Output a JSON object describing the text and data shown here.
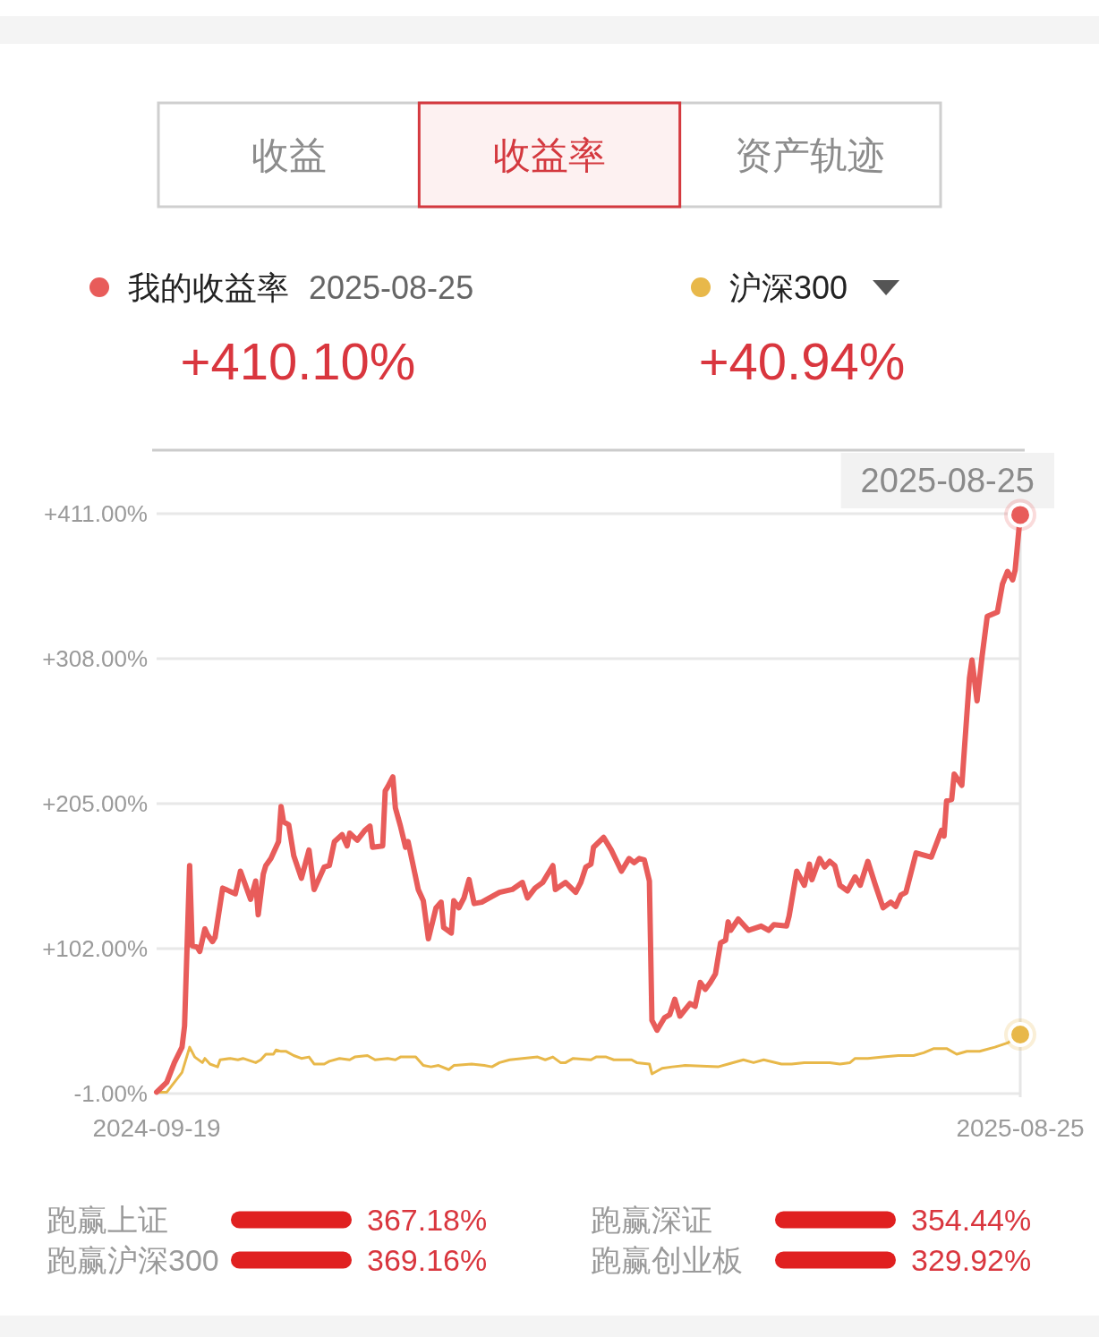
{
  "chart_data": [
    {
      "type": "line",
      "legend": "top",
      "grid": "y",
      "annotations": [
        "收益",
        "收益率",
        "资产轨迹",
        "2025-08-25",
        "+410.10%",
        "+40.94%"
      ],
      "xlim": [
        "2024-09-19",
        "2025-08-25"
      ],
      "xticks": [
        "2024-09-19",
        "2025-08-25"
      ],
      "ylim": [
        -1,
        411
      ],
      "yticks": [
        {
          "value": -1,
          "label": "-1.00%"
        },
        {
          "value": 102,
          "label": "+102.00%"
        },
        {
          "value": 205,
          "label": "+205.00%"
        },
        {
          "value": 308,
          "label": "+308.00%"
        },
        {
          "value": 411,
          "label": "+411.00%"
        }
      ],
      "ref_lines": [
        {
          "axis": "x",
          "value": "2025-08-25",
          "label": "2025-08-25",
          "color": "#e6e6e6"
        }
      ],
      "series": [
        {
          "name": "我的收益率",
          "color": "#e85c5a",
          "x": [
            "2024-09-19",
            "2024-09-23",
            "2024-09-26",
            "2024-09-29",
            "2024-09-30",
            "2024-10-02",
            "2024-10-03",
            "2024-10-05",
            "2024-10-06",
            "2024-10-08",
            "2024-10-09",
            "2024-10-11",
            "2024-10-12",
            "2024-10-15",
            "2024-10-20",
            "2024-10-22",
            "2024-10-26",
            "2024-10-28",
            "2024-10-29",
            "2024-10-31",
            "2024-11-01",
            "2024-11-03",
            "2024-11-06",
            "2024-11-07",
            "2024-11-08",
            "2024-11-10",
            "2024-11-12",
            "2024-11-15",
            "2024-11-18",
            "2024-11-20",
            "2024-11-24",
            "2024-11-26",
            "2024-11-28",
            "2024-12-01",
            "2024-12-03",
            "2024-12-04",
            "2024-12-07",
            "2024-12-10",
            "2024-12-12",
            "2024-12-13",
            "2024-12-17",
            "2024-12-18",
            "2024-12-19",
            "2024-12-21",
            "2024-12-22",
            "2024-12-24",
            "2024-12-26",
            "2024-12-27",
            "2024-12-31",
            "2025-01-02",
            "2025-01-04",
            "2025-01-07",
            "2025-01-09",
            "2025-01-10",
            "2025-01-13",
            "2025-01-14",
            "2025-01-16",
            "2025-01-18",
            "2025-01-20",
            "2025-01-22",
            "2025-01-25",
            "2025-01-28",
            "2025-02-01",
            "2025-02-06",
            "2025-02-10",
            "2025-02-12",
            "2025-02-15",
            "2025-02-18",
            "2025-02-22",
            "2025-02-23",
            "2025-02-27",
            "2025-03-03",
            "2025-03-05",
            "2025-03-07",
            "2025-03-09",
            "2025-03-10",
            "2025-03-14",
            "2025-03-17",
            "2025-03-21",
            "2025-03-24",
            "2025-03-26",
            "2025-03-28",
            "2025-03-30",
            "2025-04-01",
            "2025-04-02",
            "2025-04-04",
            "2025-04-07",
            "2025-04-09",
            "2025-04-11",
            "2025-04-13",
            "2025-04-17",
            "2025-04-19",
            "2025-04-21",
            "2025-04-23",
            "2025-04-25",
            "2025-04-27",
            "2025-04-29",
            "2025-05-01",
            "2025-05-02",
            "2025-05-03",
            "2025-05-06",
            "2025-05-10",
            "2025-05-15",
            "2025-05-18",
            "2025-05-20",
            "2025-05-25",
            "2025-05-26",
            "2025-05-29",
            "2025-06-01",
            "2025-06-03",
            "2025-06-04",
            "2025-06-07",
            "2025-06-09",
            "2025-06-11",
            "2025-06-13",
            "2025-06-15",
            "2025-06-18",
            "2025-06-21",
            "2025-06-23",
            "2025-06-26",
            "2025-06-29",
            "2025-07-02",
            "2025-07-05",
            "2025-07-07",
            "2025-07-09",
            "2025-07-11",
            "2025-07-12",
            "2025-07-15",
            "2025-07-21",
            "2025-07-25",
            "2025-07-26",
            "2025-07-27",
            "2025-07-29",
            "2025-07-30",
            "2025-08-02",
            "2025-08-05",
            "2025-08-06",
            "2025-08-08",
            "2025-08-10",
            "2025-08-12",
            "2025-08-16",
            "2025-08-18",
            "2025-08-20",
            "2025-08-22",
            "2025-08-23",
            "2025-08-25"
          ],
          "values": [
            0,
            7,
            21,
            32,
            47,
            161,
            104,
            103,
            100,
            116,
            112,
            107,
            110,
            145,
            141,
            157,
            137,
            150,
            126,
            155,
            161,
            166,
            178,
            203,
            192,
            190,
            168,
            152,
            172,
            144,
            160,
            161,
            178,
            183,
            175,
            184,
            179,
            186,
            189,
            174,
            175,
            214,
            217,
            224,
            202,
            189,
            174,
            178,
            144,
            136,
            109,
            131,
            135,
            117,
            113,
            136,
            131,
            138,
            151,
            134,
            135,
            138,
            142,
            144,
            149,
            138,
            145,
            149,
            161,
            144,
            149,
            142,
            149,
            160,
            162,
            174,
            181,
            172,
            157,
            166,
            163,
            166,
            165,
            150,
            51,
            44,
            53,
            55,
            66,
            54,
            63,
            61,
            78,
            73,
            78,
            84,
            106,
            108,
            121,
            115,
            123,
            115,
            118,
            115,
            119,
            118,
            125,
            157,
            147,
            162,
            151,
            166,
            160,
            164,
            161,
            147,
            143,
            153,
            147,
            164,
            147,
            131,
            135,
            132,
            140,
            142,
            149,
            170,
            167,
            186,
            182,
            207,
            208,
            226,
            218,
            294,
            307,
            278,
            310,
            338,
            341,
            361,
            370,
            364,
            371,
            410.1
          ]
        },
        {
          "name": "沪深300",
          "color": "#e8b84a",
          "x": [
            "2024-09-19",
            "2024-09-23",
            "2024-09-26",
            "2024-09-29",
            "2024-10-02",
            "2024-10-04",
            "2024-10-07",
            "2024-10-08",
            "2024-10-10",
            "2024-10-13",
            "2024-10-14",
            "2024-10-18",
            "2024-10-21",
            "2024-10-23",
            "2024-10-28",
            "2024-10-30",
            "2024-11-01",
            "2024-11-04",
            "2024-11-05",
            "2024-11-07",
            "2024-11-09",
            "2024-11-12",
            "2024-11-15",
            "2024-11-18",
            "2024-11-20",
            "2024-11-24",
            "2024-11-26",
            "2024-11-30",
            "2024-12-04",
            "2024-12-06",
            "2024-12-11",
            "2024-12-14",
            "2024-12-19",
            "2024-12-22",
            "2024-12-24",
            "2024-12-30",
            "2025-01-02",
            "2025-01-05",
            "2025-01-08",
            "2025-01-12",
            "2025-01-14",
            "2025-01-21",
            "2025-01-26",
            "2025-01-29",
            "2025-02-01",
            "2025-02-05",
            "2025-02-10",
            "2025-02-16",
            "2025-02-19",
            "2025-02-22",
            "2025-02-25",
            "2025-02-27",
            "2025-03-02",
            "2025-03-09",
            "2025-03-11",
            "2025-03-15",
            "2025-03-18",
            "2025-03-25",
            "2025-03-27",
            "2025-04-01",
            "2025-04-02",
            "2025-04-06",
            "2025-04-10",
            "2025-04-15",
            "2025-04-28",
            "2025-05-02",
            "2025-05-08",
            "2025-05-12",
            "2025-05-16",
            "2025-05-23",
            "2025-05-27",
            "2025-06-01",
            "2025-06-06",
            "2025-06-11",
            "2025-06-15",
            "2025-06-19",
            "2025-06-21",
            "2025-06-26",
            "2025-07-02",
            "2025-07-08",
            "2025-07-14",
            "2025-07-18",
            "2025-07-22",
            "2025-07-27",
            "2025-07-31",
            "2025-08-04",
            "2025-08-09",
            "2025-08-15",
            "2025-08-20",
            "2025-08-25"
          ],
          "values": [
            0,
            0,
            7,
            14,
            32,
            25,
            21,
            24,
            20,
            18,
            23,
            24,
            23,
            24,
            21,
            23,
            27,
            27,
            30,
            29,
            29,
            26,
            24,
            25,
            20,
            20,
            22,
            24,
            23,
            25,
            26,
            23,
            24,
            23,
            25,
            25,
            19,
            18,
            19,
            16,
            19,
            20,
            19,
            18,
            21,
            23,
            24,
            25,
            23,
            25,
            21,
            21,
            24,
            23,
            25,
            25,
            23,
            23,
            21,
            20,
            13,
            17,
            18,
            19,
            18,
            20,
            23,
            21,
            23,
            20,
            20,
            21,
            21,
            21,
            20,
            21,
            24,
            24,
            25,
            26,
            26,
            28,
            31,
            31,
            27,
            29,
            29,
            32,
            35,
            40.94
          ]
        }
      ]
    },
    {
      "type": "other",
      "annotations": [
        "跑赢上证",
        "367.18%",
        "跑赢沪深300",
        "369.16%"
      ]
    },
    {
      "type": "other",
      "annotations": [
        "跑赢深证",
        "354.44%",
        "跑赢创业板",
        "329.92%"
      ]
    }
  ]
}
